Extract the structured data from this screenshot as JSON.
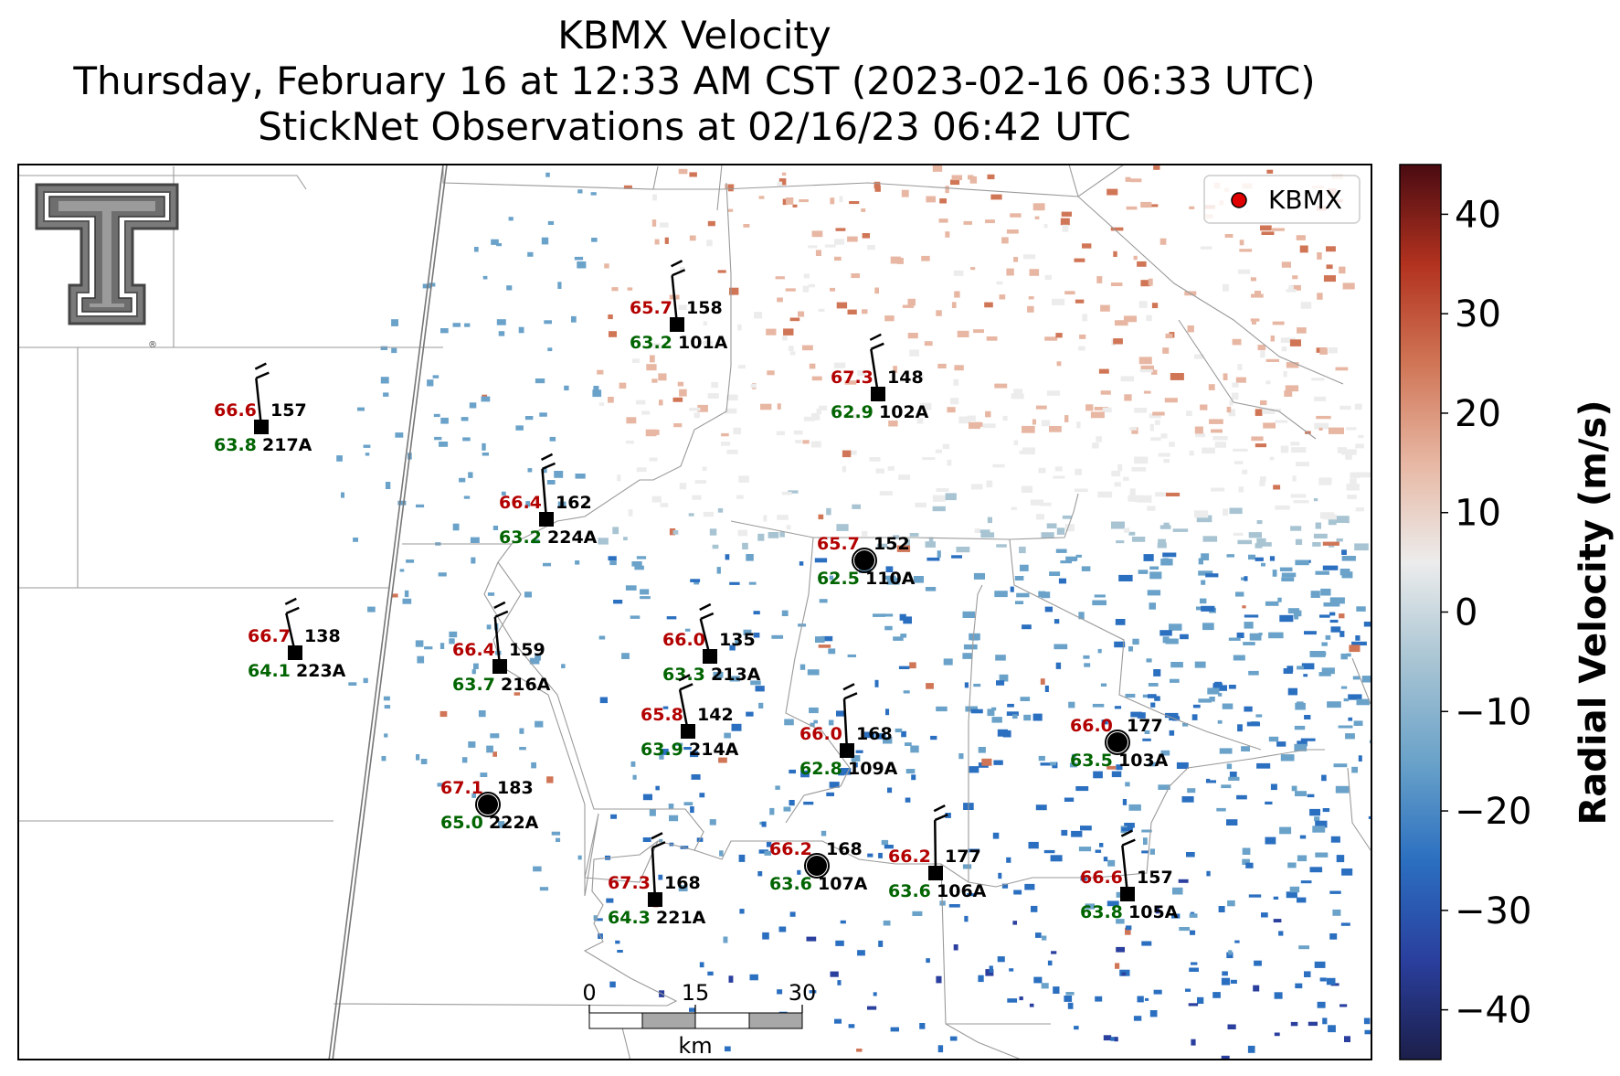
{
  "header": {
    "title": "KBMX Velocity",
    "subtitle": "Thursday, February 16 at 12:33 AM CST (2023-02-16 06:33 UTC)",
    "obs_line": "StickNet Observations at 02/16/23 06:42 UTC"
  },
  "legend": {
    "label": "KBMX",
    "marker_color": "#e00000"
  },
  "colorbar": {
    "label": "Radial Velocity (m/s)",
    "ticks": [
      "40",
      "30",
      "20",
      "10",
      "0",
      "−10",
      "−20",
      "−30",
      "−40"
    ],
    "range": [
      -45,
      45
    ],
    "colors": [
      "#1c1f4a",
      "#2a3f9e",
      "#2b6fc0",
      "#6aa2c9",
      "#a8c4d3",
      "#ececec",
      "#e7b7a3",
      "#d07556",
      "#b2321f",
      "#4a0b12"
    ]
  },
  "scalebar": {
    "ticks": [
      "0",
      "15",
      "30"
    ],
    "unit": "km"
  },
  "logo": {
    "name": "Texas Tech Double T",
    "mark": "®"
  },
  "stations": [
    {
      "id": "101A",
      "temp": "65.7",
      "dew": "63.2",
      "dir": "158",
      "marker": "square"
    },
    {
      "id": "102A",
      "temp": "67.3",
      "dew": "62.9",
      "dir": "148",
      "marker": "square"
    },
    {
      "id": "217A",
      "temp": "66.6",
      "dew": "63.8",
      "dir": "157",
      "marker": "square"
    },
    {
      "id": "224A",
      "temp": "66.4",
      "dew": "63.2",
      "dir": "162",
      "marker": "square"
    },
    {
      "id": "110A",
      "temp": "65.7",
      "dew": "62.5",
      "dir": "152",
      "marker": "calm"
    },
    {
      "id": "223A",
      "temp": "66.7",
      "dew": "64.1",
      "dir": "138",
      "marker": "square"
    },
    {
      "id": "216A",
      "temp": "66.4",
      "dew": "63.7",
      "dir": "159",
      "marker": "square"
    },
    {
      "id": "213A",
      "temp": "66.0",
      "dew": "63.3",
      "dir": "135",
      "marker": "square"
    },
    {
      "id": "214A",
      "temp": "65.8",
      "dew": "63.9",
      "dir": "142",
      "marker": "square"
    },
    {
      "id": "109A",
      "temp": "66.0",
      "dew": "62.8",
      "dir": "168",
      "marker": "square"
    },
    {
      "id": "103A",
      "temp": "66.0",
      "dew": "63.5",
      "dir": "177",
      "marker": "calm"
    },
    {
      "id": "222A",
      "temp": "67.1",
      "dew": "65.0",
      "dir": "183",
      "marker": "calm"
    },
    {
      "id": "107A",
      "temp": "66.2",
      "dew": "63.6",
      "dir": "168",
      "marker": "calm"
    },
    {
      "id": "106A",
      "temp": "66.2",
      "dew": "63.6",
      "dir": "177",
      "marker": "square"
    },
    {
      "id": "221A",
      "temp": "67.3",
      "dew": "64.3",
      "dir": "168",
      "marker": "square"
    },
    {
      "id": "105A",
      "temp": "66.6",
      "dew": "63.8",
      "dir": "157",
      "marker": "square"
    }
  ]
}
